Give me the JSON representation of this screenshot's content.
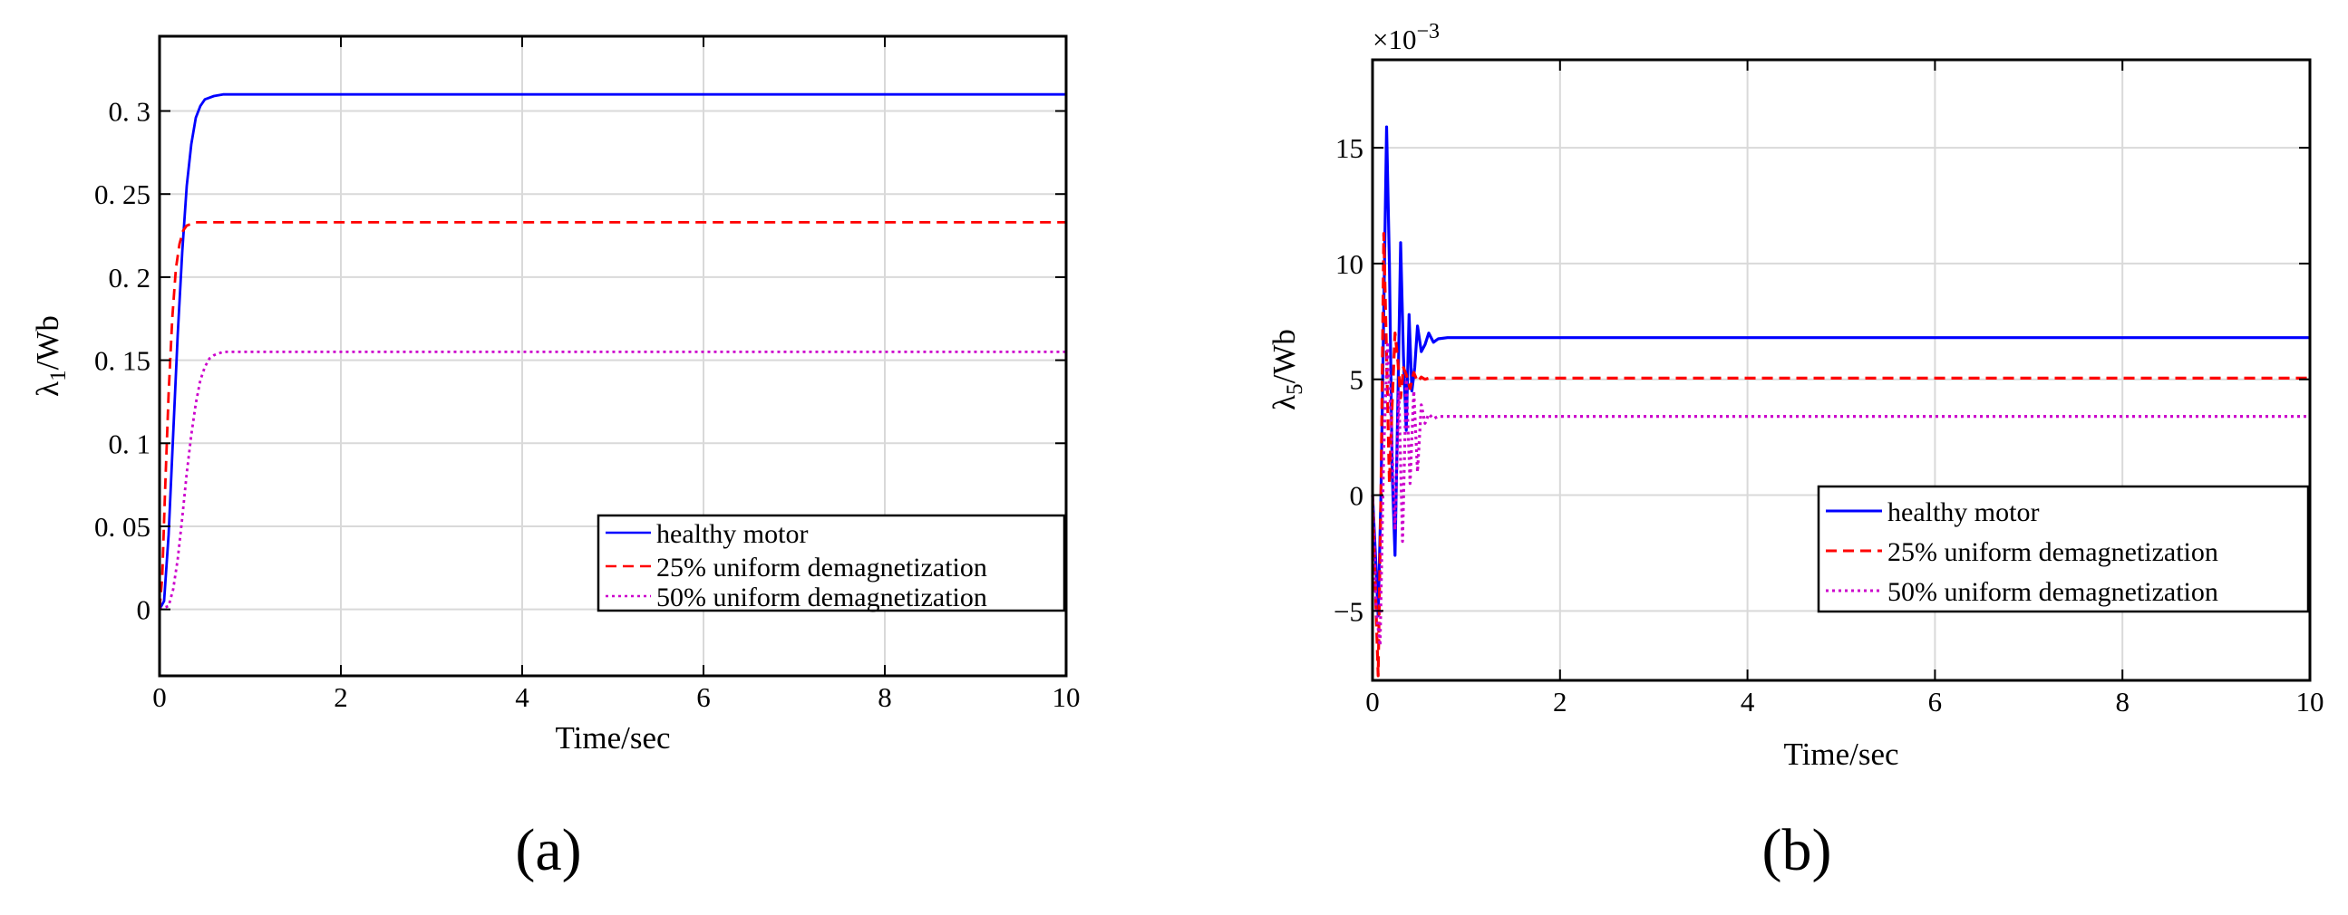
{
  "figure": {
    "panel_labels": [
      "(a)",
      "(b)"
    ],
    "colors": {
      "healthy": "#0000ff",
      "demag25": "#ff0000",
      "demag50": "#cc00cc",
      "grid": "#d9d9d9"
    }
  },
  "chart_data": [
    {
      "type": "line",
      "panel": "(a)",
      "title": "",
      "xlabel": "Time/sec",
      "ylabel": "λ1/Wb",
      "ylabel_main": "λ",
      "ylabel_sub": "1",
      "ylabel_unit": "/Wb",
      "xlim": [
        0,
        10
      ],
      "ylim": [
        -0.04,
        0.345
      ],
      "xticks": [
        0,
        2,
        4,
        6,
        8,
        10
      ],
      "xtick_labels": [
        "0",
        "2",
        "4",
        "6",
        "8",
        "10"
      ],
      "yticks": [
        0,
        0.05,
        0.1,
        0.15,
        0.2,
        0.25,
        0.3
      ],
      "ytick_labels": [
        "0",
        "0. 05",
        "0. 1",
        "0. 15",
        "0. 2",
        "0. 25",
        "0. 3"
      ],
      "grid": true,
      "legend_position": "lower-right",
      "series": [
        {
          "name": "healthy motor",
          "style": "solid",
          "color": "#0000ff",
          "x": [
            0,
            0.05,
            0.1,
            0.15,
            0.2,
            0.25,
            0.3,
            0.35,
            0.4,
            0.45,
            0.5,
            0.6,
            0.7,
            0.8,
            1.0,
            2,
            4,
            6,
            8,
            10
          ],
          "y": [
            0,
            0.005,
            0.045,
            0.105,
            0.165,
            0.215,
            0.255,
            0.28,
            0.296,
            0.303,
            0.307,
            0.309,
            0.31,
            0.31,
            0.31,
            0.31,
            0.31,
            0.31,
            0.31,
            0.31
          ]
        },
        {
          "name": "25% uniform demagnetization",
          "style": "dashed",
          "color": "#ff0000",
          "x": [
            0,
            0.03,
            0.06,
            0.1,
            0.14,
            0.18,
            0.22,
            0.26,
            0.3,
            0.35,
            0.4,
            0.5,
            0.7,
            1.0,
            2,
            4,
            6,
            8,
            10
          ],
          "y": [
            0,
            0.02,
            0.07,
            0.13,
            0.175,
            0.205,
            0.22,
            0.228,
            0.231,
            0.232,
            0.233,
            0.233,
            0.233,
            0.233,
            0.233,
            0.233,
            0.233,
            0.233,
            0.233
          ]
        },
        {
          "name": "50% uniform demagnetization",
          "style": "dotted",
          "color": "#cc00cc",
          "x": [
            0,
            0.1,
            0.15,
            0.2,
            0.25,
            0.3,
            0.35,
            0.4,
            0.45,
            0.5,
            0.55,
            0.6,
            0.7,
            0.8,
            1.0,
            2,
            4,
            6,
            8,
            10
          ],
          "y": [
            0,
            0.002,
            0.012,
            0.03,
            0.055,
            0.082,
            0.105,
            0.124,
            0.138,
            0.146,
            0.151,
            0.153,
            0.155,
            0.155,
            0.155,
            0.155,
            0.155,
            0.155,
            0.155,
            0.155
          ]
        }
      ]
    },
    {
      "type": "line",
      "panel": "(b)",
      "title": "",
      "xlabel": "Time/sec",
      "ylabel": "λ5/Wb",
      "ylabel_main": "λ",
      "ylabel_sub": "5",
      "ylabel_unit": "/Wb",
      "scale_note": "×10",
      "scale_exp": "−3",
      "xlim": [
        0,
        10
      ],
      "ylim": [
        -8,
        18.8
      ],
      "xticks": [
        0,
        2,
        4,
        6,
        8,
        10
      ],
      "xtick_labels": [
        "0",
        "2",
        "4",
        "6",
        "8",
        "10"
      ],
      "yticks": [
        -5,
        0,
        5,
        10,
        15
      ],
      "ytick_labels": [
        "−5",
        "0",
        "5",
        "10",
        "15"
      ],
      "grid": true,
      "legend_position": "lower-right",
      "series": [
        {
          "name": "healthy motor",
          "style": "solid",
          "color": "#0000ff",
          "x": [
            0,
            0.03,
            0.06,
            0.09,
            0.12,
            0.15,
            0.18,
            0.21,
            0.24,
            0.27,
            0.3,
            0.33,
            0.36,
            0.39,
            0.42,
            0.45,
            0.48,
            0.52,
            0.56,
            0.6,
            0.65,
            0.7,
            0.8,
            1.0,
            2,
            4,
            6,
            8,
            10
          ],
          "y": [
            0,
            -2.5,
            -5.2,
            0,
            8,
            15.9,
            10,
            1,
            -2.6,
            4,
            10.9,
            6,
            2.8,
            7.8,
            4.5,
            5.5,
            7.3,
            6.2,
            6.5,
            7.0,
            6.6,
            6.75,
            6.8,
            6.8,
            6.8,
            6.8,
            6.8,
            6.8,
            6.8
          ]
        },
        {
          "name": "25% uniform demagnetization",
          "style": "dashed",
          "color": "#ff0000",
          "x": [
            0,
            0.03,
            0.06,
            0.09,
            0.12,
            0.15,
            0.18,
            0.21,
            0.24,
            0.27,
            0.3,
            0.33,
            0.36,
            0.4,
            0.44,
            0.48,
            0.52,
            0.56,
            0.6,
            0.7,
            0.8,
            1.0,
            2,
            4,
            6,
            8,
            10
          ],
          "y": [
            0,
            -4,
            -7.8,
            0,
            11.3,
            6,
            0.5,
            4,
            7,
            5.8,
            4.2,
            5.5,
            5.2,
            4.6,
            5.3,
            4.9,
            5.1,
            5.0,
            5.05,
            5.05,
            5.05,
            5.05,
            5.05,
            5.05,
            5.05,
            5.05,
            5.05
          ]
        },
        {
          "name": "50% uniform demagnetization",
          "style": "dotted",
          "color": "#cc00cc",
          "x": [
            0,
            0.04,
            0.08,
            0.12,
            0.16,
            0.2,
            0.24,
            0.28,
            0.32,
            0.36,
            0.4,
            0.44,
            0.48,
            0.52,
            0.56,
            0.6,
            0.65,
            0.7,
            0.8,
            1.0,
            2,
            4,
            6,
            8,
            10
          ],
          "y": [
            0,
            -5,
            -6.5,
            2,
            6.5,
            3,
            -1.5,
            4.5,
            -2,
            5,
            0.5,
            4.5,
            1,
            3.9,
            3.1,
            3.5,
            3.3,
            3.4,
            3.4,
            3.4,
            3.4,
            3.4,
            3.4,
            3.4,
            3.4
          ]
        }
      ]
    }
  ]
}
